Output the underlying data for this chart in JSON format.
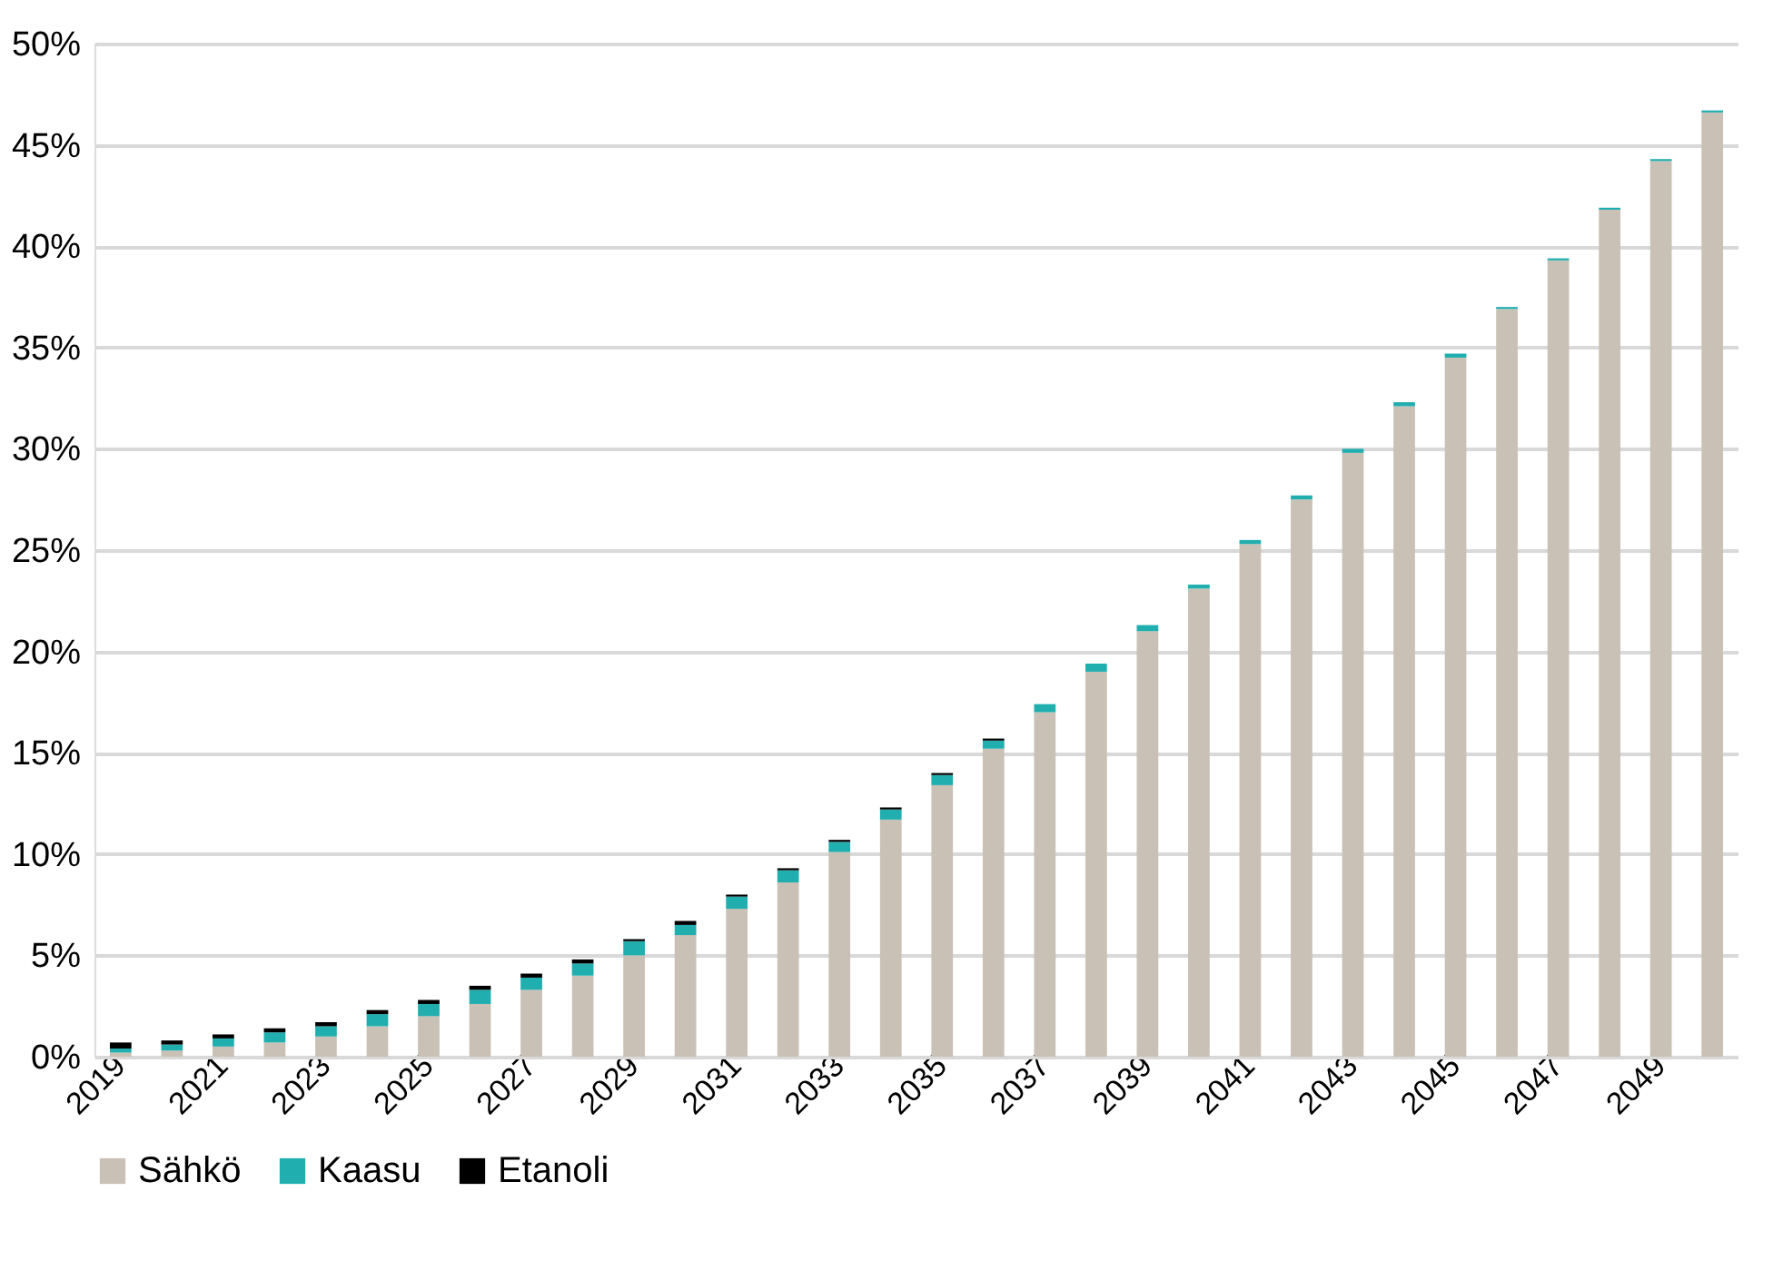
{
  "chart_data": {
    "type": "bar",
    "stacked": true,
    "grid": "y",
    "legend": "bottom",
    "categories": [
      "2019",
      null,
      "2021",
      null,
      "2023",
      null,
      "2025",
      null,
      "2027",
      null,
      "2029",
      null,
      "2031",
      null,
      "2033",
      null,
      "2035",
      null,
      "2037",
      null,
      "2039",
      null,
      "2041",
      null,
      "2043",
      null,
      "2045",
      null,
      "2047",
      null,
      "2049",
      null
    ],
    "ylim": [
      0,
      50
    ],
    "yticks": [
      {
        "value": 0,
        "label": "0%"
      },
      {
        "value": 5,
        "label": "5%"
      },
      {
        "value": 10,
        "label": "10%"
      },
      {
        "value": 15,
        "label": "15%"
      },
      {
        "value": 20,
        "label": "20%"
      },
      {
        "value": 25,
        "label": "25%"
      },
      {
        "value": 30,
        "label": "30%"
      },
      {
        "value": 35,
        "label": "35%"
      },
      {
        "value": 40,
        "label": "40%"
      },
      {
        "value": 45,
        "label": "45%"
      },
      {
        "value": 50,
        "label": "50%"
      }
    ],
    "series": [
      {
        "name": "Sähkö",
        "color": "#c9c1b5",
        "values": [
          0.2,
          0.3,
          0.5,
          0.7,
          1.0,
          1.5,
          2.0,
          2.6,
          3.3,
          4.0,
          5.0,
          6.0,
          7.3,
          8.6,
          10.1,
          11.7,
          13.4,
          15.2,
          17.0,
          19.0,
          21.0,
          23.1,
          25.3,
          27.5,
          29.8,
          32.1,
          34.5,
          36.9,
          39.3,
          41.8,
          44.2,
          46.6
        ]
      },
      {
        "name": "Kaasu",
        "color": "#21aeae",
        "values": [
          0.2,
          0.3,
          0.4,
          0.5,
          0.5,
          0.6,
          0.6,
          0.7,
          0.6,
          0.6,
          0.7,
          0.5,
          0.6,
          0.6,
          0.5,
          0.5,
          0.5,
          0.4,
          0.4,
          0.4,
          0.3,
          0.2,
          0.2,
          0.2,
          0.2,
          0.2,
          0.2,
          0.1,
          0.1,
          0.1,
          0.1,
          0.1
        ]
      },
      {
        "name": "Etanoli",
        "color": "#000000",
        "values": [
          0.3,
          0.2,
          0.2,
          0.2,
          0.2,
          0.2,
          0.2,
          0.2,
          0.2,
          0.2,
          0.1,
          0.2,
          0.1,
          0.1,
          0.1,
          0.1,
          0.1,
          0.1,
          null,
          null,
          null,
          null,
          null,
          null,
          null,
          null,
          null,
          null,
          null,
          null,
          null,
          null
        ]
      }
    ]
  }
}
